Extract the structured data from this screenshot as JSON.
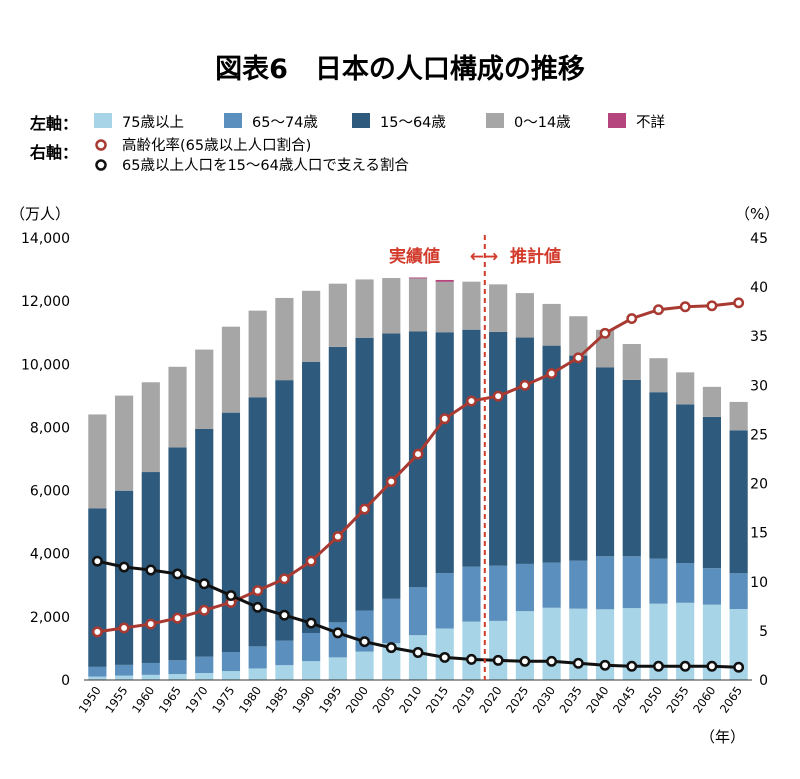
{
  "chart_data": {
    "type": "bar",
    "title": "図表6　日本の人口構成の推移",
    "legend": {
      "left_axis_label": "左軸：",
      "right_axis_label": "右軸：",
      "bar_entries": [
        {
          "name": "75歳以上",
          "color": "#a7d4e6"
        },
        {
          "name": "65～74歳",
          "color": "#5b8fbd"
        },
        {
          "name": "15～64歳",
          "color": "#2e5a7d"
        },
        {
          "name": "0～14歳",
          "color": "#a6a6a6"
        },
        {
          "name": "不詳",
          "color": "#b5457d"
        }
      ],
      "line_entries": [
        {
          "name": "高齢化率(65歳以上人口割合)",
          "color": "#a83a32"
        },
        {
          "name": "65歳以上人口を15～64歳人口で支える割合",
          "color": "#111111"
        }
      ]
    },
    "left_axis": {
      "unit": "（万人）",
      "ylim": [
        0,
        14000
      ],
      "ticks": [
        "0",
        "2,000",
        "4,000",
        "6,000",
        "8,000",
        "10,000",
        "12,000",
        "14,000"
      ]
    },
    "right_axis": {
      "unit": "（%）",
      "ylim": [
        0,
        45
      ],
      "ticks": [
        "0",
        "5",
        "10",
        "15",
        "20",
        "25",
        "30",
        "35",
        "40",
        "45"
      ]
    },
    "x_unit": "（年）",
    "categories": [
      "1950",
      "1955",
      "1960",
      "1965",
      "1970",
      "1975",
      "1980",
      "1985",
      "1990",
      "1995",
      "2000",
      "2005",
      "2010",
      "2015",
      "2019",
      "2020",
      "2025",
      "2030",
      "2035",
      "2040",
      "2045",
      "2050",
      "2055",
      "2060",
      "2065"
    ],
    "series": [
      {
        "name": "75歳以上",
        "values": [
          107,
          139,
          163,
          189,
          221,
          284,
          366,
          471,
          597,
          717,
          901,
          1164,
          1419,
          1632,
          1849,
          1872,
          2180,
          2288,
          2260,
          2239,
          2277,
          2417,
          2446,
          2387,
          2248
        ]
      },
      {
        "name": "65～74歳",
        "values": [
          309,
          340,
          377,
          435,
          518,
          603,
          699,
          776,
          892,
          1109,
          1301,
          1407,
          1517,
          1755,
          1740,
          1747,
          1497,
          1428,
          1522,
          1681,
          1643,
          1424,
          1258,
          1154,
          1133
        ]
      },
      {
        "name": "15～64歳",
        "values": [
          5017,
          5517,
          6047,
          6744,
          7212,
          7581,
          7883,
          8251,
          8590,
          8726,
          8638,
          8409,
          8103,
          7629,
          7507,
          7406,
          7170,
          6875,
          6494,
          5978,
          5584,
          5275,
          5028,
          4793,
          4529
        ]
      },
      {
        "name": "0～14歳",
        "values": [
          2979,
          3012,
          2843,
          2553,
          2515,
          2723,
          2751,
          2603,
          2249,
          2001,
          1847,
          1752,
          1680,
          1595,
          1521,
          1507,
          1407,
          1321,
          1246,
          1194,
          1138,
          1077,
          1012,
          951,
          898
        ]
      },
      {
        "name": "不詳",
        "values": [
          0,
          0,
          0,
          0,
          0,
          0,
          0,
          0,
          0,
          0,
          0,
          0,
          30,
          60,
          0,
          0,
          0,
          0,
          0,
          0,
          0,
          0,
          0,
          0,
          0
        ]
      },
      {
        "name": "高齢化率(65歳以上人口割合)",
        "axis": "right",
        "type": "line",
        "values": [
          4.9,
          5.3,
          5.7,
          6.3,
          7.1,
          7.9,
          9.1,
          10.3,
          12.1,
          14.6,
          17.4,
          20.2,
          23.0,
          26.6,
          28.4,
          28.9,
          30.0,
          31.2,
          32.8,
          35.3,
          36.8,
          37.7,
          38.0,
          38.1,
          38.4
        ]
      },
      {
        "name": "65歳以上人口を15～64歳人口で支える割合",
        "axis": "right",
        "type": "line",
        "values": [
          12.1,
          11.5,
          11.2,
          10.8,
          9.8,
          8.6,
          7.4,
          6.6,
          5.8,
          4.8,
          3.9,
          3.3,
          2.8,
          2.3,
          2.1,
          2.0,
          1.9,
          1.9,
          1.7,
          1.5,
          1.4,
          1.4,
          1.4,
          1.4,
          1.3
        ]
      }
    ],
    "annotation": {
      "left": "実績値",
      "right": "推計値",
      "arrow": "←→",
      "split_after": "2019"
    }
  }
}
